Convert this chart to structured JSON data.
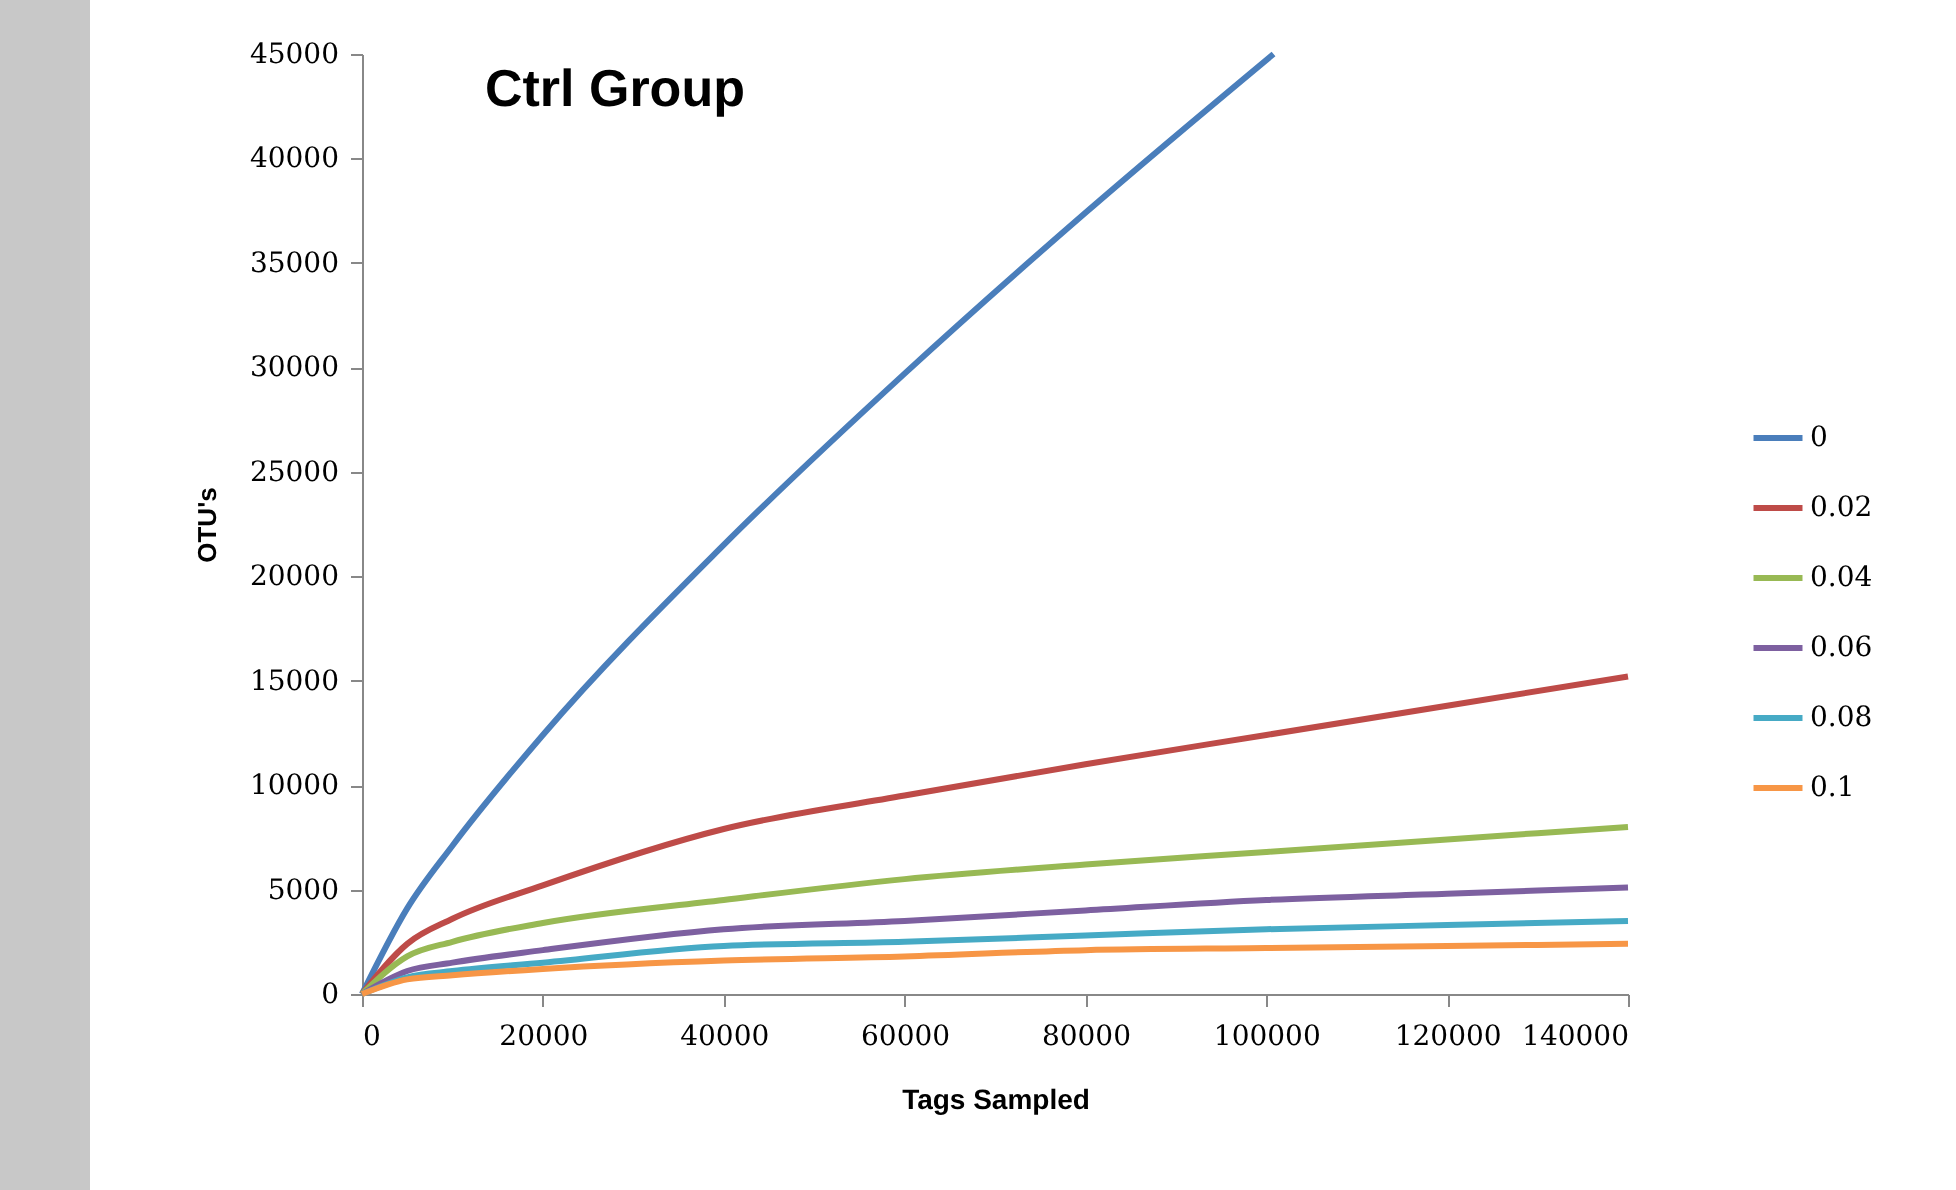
{
  "chart_data": {
    "type": "line",
    "title": "Ctrl Group",
    "xlabel": "Tags Sampled",
    "ylabel": "OTU's",
    "xlim": [
      0,
      140000
    ],
    "xticks": [
      0,
      20000,
      40000,
      60000,
      80000,
      100000,
      120000,
      140000
    ],
    "ylim": [
      0,
      45000
    ],
    "yticks": [
      0,
      5000,
      10000,
      15000,
      20000,
      25000,
      30000,
      35000,
      40000,
      45000
    ],
    "grid": false,
    "legend": "right",
    "marker": "none",
    "line_style": "solid",
    "series": [
      {
        "name": "0",
        "color": "#4a7ebb",
        "x": [
          0,
          5000,
          10000,
          20000,
          40000,
          60000,
          80000,
          100800
        ],
        "values": [
          0,
          4100,
          7100,
          12400,
          21500,
          29700,
          37400,
          45000
        ]
      },
      {
        "name": "0.02",
        "color": "#be4b48",
        "x": [
          0,
          5000,
          10000,
          20000,
          40000,
          60000,
          80000,
          100000,
          120000,
          140000
        ],
        "values": [
          0,
          2400,
          3600,
          5200,
          7900,
          9500,
          11000,
          12400,
          13800,
          15200
        ]
      },
      {
        "name": "0.04",
        "color": "#98b954",
        "x": [
          0,
          5000,
          10000,
          20000,
          40000,
          60000,
          80000,
          100000,
          120000,
          140000
        ],
        "values": [
          0,
          1800,
          2500,
          3400,
          4500,
          5500,
          6200,
          6800,
          7400,
          8000
        ]
      },
      {
        "name": "0.06",
        "color": "#7d60a0",
        "x": [
          0,
          5000,
          10000,
          20000,
          40000,
          60000,
          80000,
          100000,
          120000,
          140000
        ],
        "values": [
          0,
          1100,
          1500,
          2100,
          3100,
          3500,
          4000,
          4500,
          4800,
          5100
        ]
      },
      {
        "name": "0.08",
        "color": "#46aac5",
        "x": [
          0,
          5000,
          10000,
          20000,
          40000,
          60000,
          80000,
          100000,
          120000,
          140000
        ],
        "values": [
          0,
          800,
          1100,
          1500,
          2300,
          2500,
          2800,
          3100,
          3300,
          3500
        ]
      },
      {
        "name": "0.1",
        "color": "#f79646",
        "x": [
          0,
          5000,
          10000,
          20000,
          40000,
          60000,
          80000,
          100000,
          120000,
          140000
        ],
        "values": [
          0,
          700,
          900,
          1200,
          1600,
          1800,
          2100,
          2200,
          2300,
          2400
        ]
      }
    ]
  }
}
